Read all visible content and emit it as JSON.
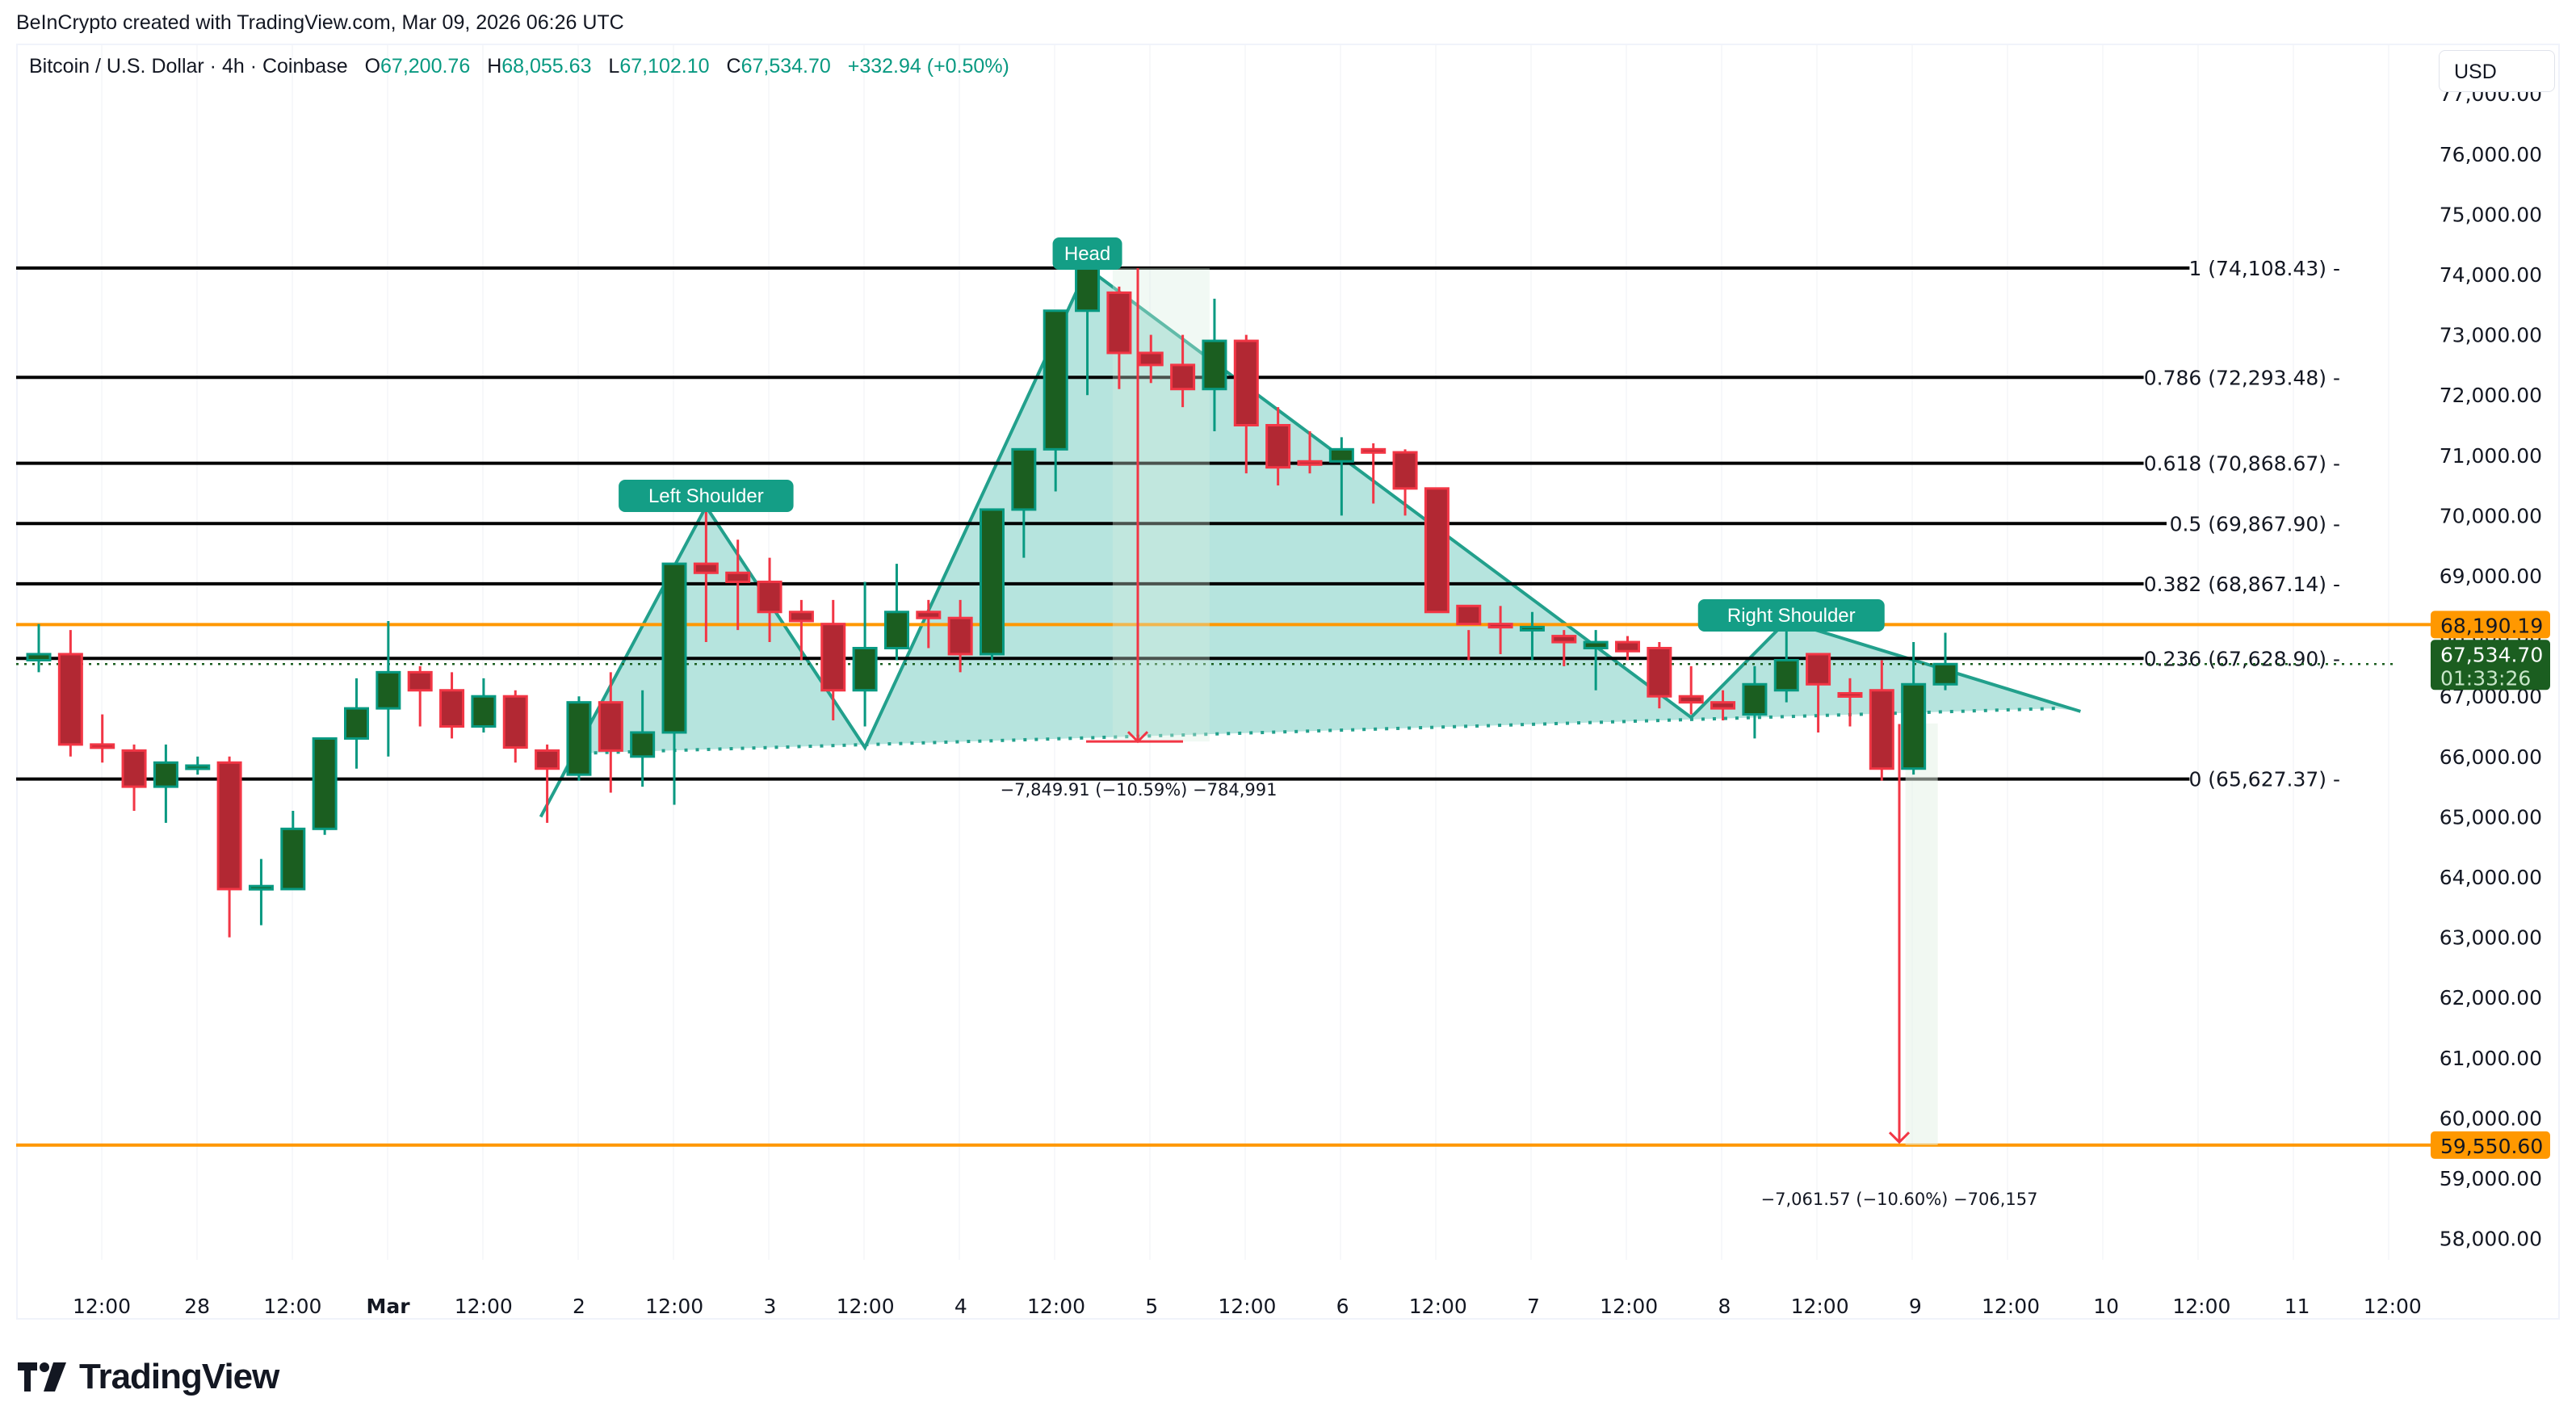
{
  "attribution": "BeInCrypto created with TradingView.com, Mar 09, 2026 06:26 UTC",
  "legend": {
    "symbol": "Bitcoin / U.S. Dollar · 4h · Coinbase",
    "o_label": "O",
    "o": "67,200.76",
    "h_label": "H",
    "h": "68,055.63",
    "l_label": "L",
    "l": "67,102.10",
    "c_label": "C",
    "c": "67,534.70",
    "change": "+332.94 (+0.50%)"
  },
  "currency_button": "USD",
  "logo": {
    "text": "TradingView",
    "icon": "tradingview-logo-icon"
  },
  "colors": {
    "up_body": "#1b5e20",
    "up_border": "#089981",
    "down_body": "#b22833",
    "down_border": "#f23645",
    "pattern_fill": "#b2e3dc",
    "pattern_line": "#22a08c",
    "label_bg": "#149e86",
    "fib_line": "#000000",
    "support_line": "#ff9800",
    "price_tag": "#1b5e20"
  },
  "price_tags": {
    "resistance": "68,190.19",
    "last_price": "67,534.70",
    "countdown": "01:33:26",
    "target": "59,550.60"
  },
  "measurements": {
    "head_drop": "−7,849.91 (−10.59%) −784,991",
    "target_drop": "−7,061.57 (−10.60%) −706,157"
  },
  "pattern_labels": {
    "left_shoulder": "Left Shoulder",
    "head": "Head",
    "right_shoulder": "Right Shoulder"
  },
  "chart_data": {
    "type": "candlestick",
    "title": "Bitcoin / U.S. Dollar · 4h · Coinbase",
    "ylabel": "USD",
    "ylim": [
      57400,
      77200
    ],
    "grid": false,
    "y_ticks": [
      "77,000.00",
      "76,000.00",
      "75,000.00",
      "74,000.00",
      "73,000.00",
      "72,000.00",
      "71,000.00",
      "70,000.00",
      "69,000.00",
      "68,000.00",
      "67,000.00",
      "66,000.00",
      "65,000.00",
      "64,000.00",
      "63,000.00",
      "62,000.00",
      "61,000.00",
      "60,000.00",
      "59,000.00",
      "58,000.00"
    ],
    "x_ticks": [
      "12:00",
      "28",
      "12:00",
      "Mar",
      "12:00",
      "2",
      "12:00",
      "3",
      "12:00",
      "4",
      "12:00",
      "5",
      "12:00",
      "6",
      "12:00",
      "7",
      "12:00",
      "8",
      "12:00",
      "9",
      "12:00",
      "10",
      "12:00",
      "11",
      "12:00"
    ],
    "fib_levels": [
      {
        "level": "1",
        "price": 74108.43,
        "label": "1 (74,108.43)"
      },
      {
        "level": "0.786",
        "price": 72293.48,
        "label": "0.786 (72,293.48)"
      },
      {
        "level": "0.618",
        "price": 70868.67,
        "label": "0.618 (70,868.67)"
      },
      {
        "level": "0.5",
        "price": 69867.9,
        "label": "0.5 (69,867.90)"
      },
      {
        "level": "0.382",
        "price": 68867.14,
        "label": "0.382 (68,867.14)"
      },
      {
        "level": "0.236",
        "price": 67628.9,
        "label": "0.236 (67,628.90)"
      },
      {
        "level": "0",
        "price": 65627.37,
        "label": "0 (65,627.37)"
      }
    ],
    "horizontal_lines": [
      {
        "name": "resistance",
        "price": 68190.19
      },
      {
        "name": "target",
        "price": 59550.6
      }
    ],
    "pattern": "Head and Shoulders",
    "candles": [
      [
        67600,
        68200,
        67400,
        67700
      ],
      [
        67700,
        68100,
        66000,
        66200
      ],
      [
        66200,
        66700,
        65900,
        66150
      ],
      [
        66100,
        66200,
        65100,
        65500
      ],
      [
        65500,
        66200,
        64900,
        65900
      ],
      [
        65800,
        66000,
        65700,
        65850
      ],
      [
        65900,
        66000,
        63000,
        63800
      ],
      [
        63800,
        64300,
        63200,
        63850
      ],
      [
        63800,
        65100,
        63850,
        64800
      ],
      [
        64800,
        66200,
        64700,
        66300
      ],
      [
        66300,
        67300,
        65800,
        66800
      ],
      [
        66800,
        68250,
        66000,
        67400
      ],
      [
        67400,
        67500,
        66500,
        67100
      ],
      [
        67100,
        67400,
        66300,
        66500
      ],
      [
        66500,
        67300,
        66400,
        67000
      ],
      [
        67000,
        67100,
        65900,
        66150
      ],
      [
        66100,
        66200,
        64900,
        65800
      ],
      [
        65700,
        67000,
        65600,
        66900
      ],
      [
        66900,
        67400,
        65400,
        66100
      ],
      [
        66000,
        67100,
        65500,
        66400
      ],
      [
        66400,
        69200,
        65200,
        69200
      ],
      [
        69200,
        70100,
        67900,
        69050
      ],
      [
        69050,
        69600,
        68100,
        68900
      ],
      [
        68900,
        69300,
        67900,
        68400
      ],
      [
        68400,
        68600,
        67600,
        68250
      ],
      [
        68200,
        68600,
        66600,
        67100
      ],
      [
        67100,
        68900,
        66500,
        67800
      ],
      [
        67800,
        69200,
        67600,
        68400
      ],
      [
        68400,
        68600,
        67800,
        68300
      ],
      [
        68300,
        68600,
        67400,
        67700
      ],
      [
        67700,
        70000,
        67600,
        70100
      ],
      [
        70100,
        71000,
        69300,
        71100
      ],
      [
        71100,
        73400,
        70400,
        73400
      ],
      [
        73400,
        74108,
        72000,
        74100
      ],
      [
        73700,
        73800,
        72100,
        72700
      ],
      [
        72700,
        73000,
        72200,
        72500
      ],
      [
        72500,
        73000,
        71800,
        72100
      ],
      [
        72100,
        73600,
        71400,
        72900
      ],
      [
        72900,
        73000,
        70700,
        71500
      ],
      [
        71500,
        71800,
        70500,
        70800
      ],
      [
        70900,
        71400,
        70700,
        70850
      ],
      [
        70900,
        71300,
        70000,
        71100
      ],
      [
        71100,
        71200,
        70200,
        71050
      ],
      [
        71050,
        71100,
        70000,
        70450
      ],
      [
        70450,
        70300,
        68600,
        68400
      ],
      [
        68500,
        68100,
        67600,
        68200
      ],
      [
        68200,
        68500,
        67700,
        68150
      ],
      [
        68150,
        68400,
        67600,
        68150
      ],
      [
        68000,
        68100,
        67500,
        67900
      ],
      [
        67800,
        68100,
        67100,
        67900
      ],
      [
        67900,
        68000,
        67600,
        67750
      ],
      [
        67800,
        67900,
        66800,
        67000
      ],
      [
        67000,
        67500,
        66700,
        66900
      ],
      [
        66900,
        67100,
        66600,
        66800
      ],
      [
        66700,
        67500,
        66300,
        67200
      ],
      [
        67100,
        68200,
        66900,
        67600
      ],
      [
        67700,
        67400,
        66400,
        67200
      ],
      [
        67050,
        67300,
        66500,
        67000
      ],
      [
        67100,
        67600,
        65600,
        65800
      ],
      [
        65800,
        67900,
        65700,
        67200
      ],
      [
        67200,
        68055,
        67102,
        67535
      ]
    ]
  }
}
